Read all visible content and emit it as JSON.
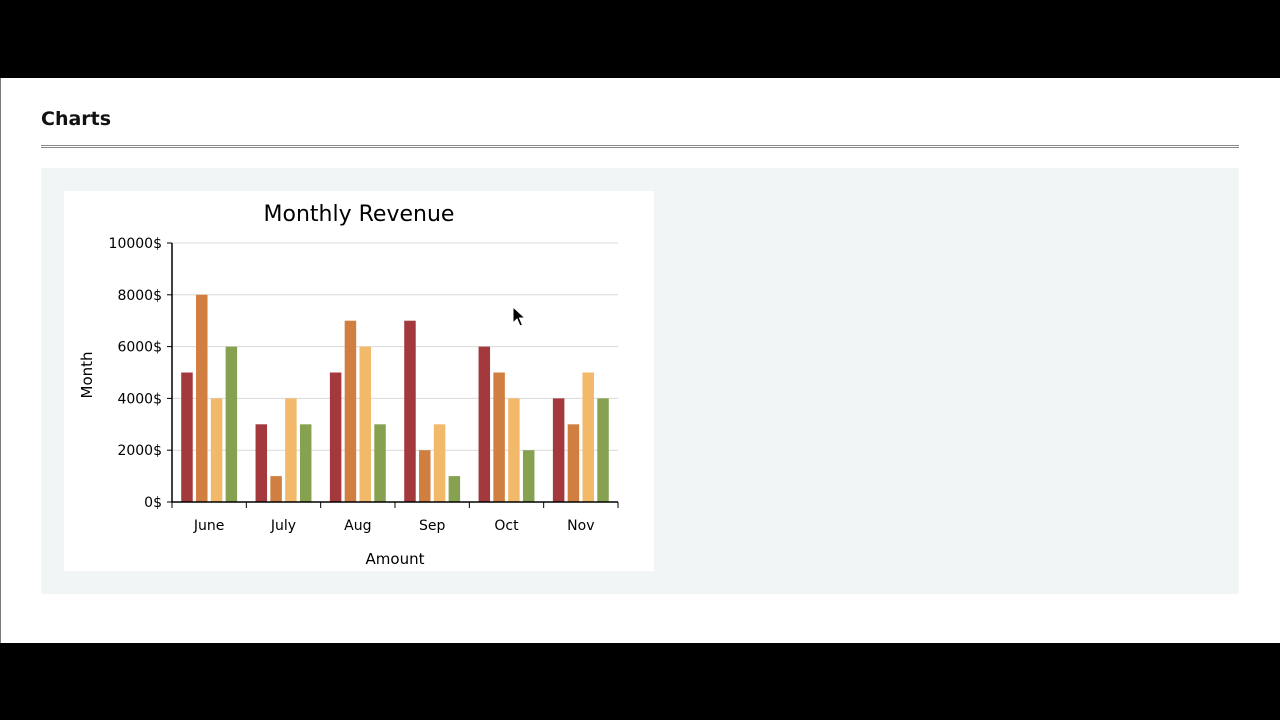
{
  "page": {
    "title": "Charts"
  },
  "chart_data": {
    "type": "bar",
    "title": "Monthly Revenue",
    "xlabel": "Amount",
    "ylabel": "Month",
    "categories": [
      "June",
      "July",
      "Aug",
      "Sep",
      "Oct",
      "Nov"
    ],
    "series": [
      {
        "color": "#a3383d",
        "values": [
          5000,
          3000,
          5000,
          7000,
          6000,
          4000
        ]
      },
      {
        "color": "#d07f40",
        "values": [
          8000,
          1000,
          7000,
          2000,
          5000,
          3000
        ]
      },
      {
        "color": "#f2b96b",
        "values": [
          4000,
          4000,
          6000,
          3000,
          4000,
          5000
        ]
      },
      {
        "color": "#86a251",
        "values": [
          6000,
          3000,
          3000,
          1000,
          2000,
          4000
        ]
      }
    ],
    "ylim": [
      0,
      10000
    ],
    "yticks": [
      0,
      2000,
      4000,
      6000,
      8000,
      10000
    ],
    "ytick_suffix": "$",
    "grid": true,
    "legend": "none"
  }
}
